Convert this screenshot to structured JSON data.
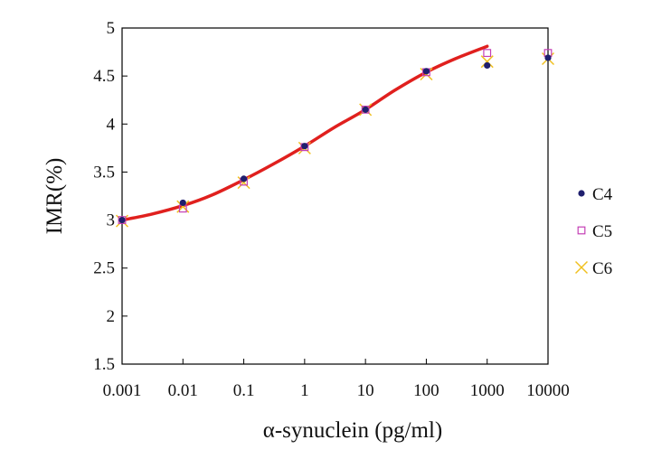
{
  "chart_data": {
    "type": "scatter",
    "xscale": "log",
    "x_ticks": [
      0.001,
      0.01,
      0.1,
      1,
      10,
      100,
      1000,
      10000
    ],
    "x_tick_labels": [
      "0.001",
      "0.01",
      "0.1",
      "1",
      "10",
      "100",
      "1000",
      "10000"
    ],
    "y_ticks": [
      1.5,
      2,
      2.5,
      3,
      3.5,
      4,
      4.5,
      5
    ],
    "y_tick_labels": [
      "1.5",
      "2",
      "2.5",
      "3",
      "3.5",
      "4",
      "4.5",
      "5"
    ],
    "xlim": [
      0.001,
      10000
    ],
    "ylim": [
      1.5,
      5
    ],
    "xlabel": "α-synuclein  (pg/ml)",
    "ylabel": "IMR(%)",
    "title": "",
    "grid": false,
    "legend_position": "right",
    "series": [
      {
        "name": "C4",
        "marker": "filled-circle",
        "color": "#1f1f6e",
        "points": [
          [
            0.001,
            3.0
          ],
          [
            0.01,
            3.18
          ],
          [
            0.1,
            3.43
          ],
          [
            1,
            3.77
          ],
          [
            10,
            4.15
          ],
          [
            100,
            4.55
          ],
          [
            1000,
            4.61
          ],
          [
            10000,
            4.69
          ]
        ]
      },
      {
        "name": "C5",
        "marker": "open-square",
        "color": "#c43fb5",
        "points": [
          [
            0.001,
            3.0
          ],
          [
            0.01,
            3.12
          ],
          [
            0.1,
            3.4
          ],
          [
            1,
            3.76
          ],
          [
            10,
            4.15
          ],
          [
            100,
            4.54
          ],
          [
            1000,
            4.74
          ],
          [
            10000,
            4.74
          ]
        ]
      },
      {
        "name": "C6",
        "marker": "x",
        "color": "#f0c020",
        "points": [
          [
            0.001,
            2.99
          ],
          [
            0.01,
            3.14
          ],
          [
            0.1,
            3.39
          ],
          [
            1,
            3.75
          ],
          [
            10,
            4.15
          ],
          [
            100,
            4.52
          ],
          [
            1000,
            4.65
          ],
          [
            10000,
            4.68
          ]
        ]
      }
    ],
    "fit_curve": {
      "color": "#e0201e",
      "points": [
        [
          0.001,
          3.0
        ],
        [
          0.003,
          3.06
        ],
        [
          0.01,
          3.15
        ],
        [
          0.03,
          3.26
        ],
        [
          0.1,
          3.42
        ],
        [
          0.3,
          3.58
        ],
        [
          1,
          3.77
        ],
        [
          3,
          3.96
        ],
        [
          10,
          4.15
        ],
        [
          30,
          4.35
        ],
        [
          100,
          4.54
        ],
        [
          300,
          4.68
        ],
        [
          1000,
          4.81
        ]
      ]
    }
  }
}
